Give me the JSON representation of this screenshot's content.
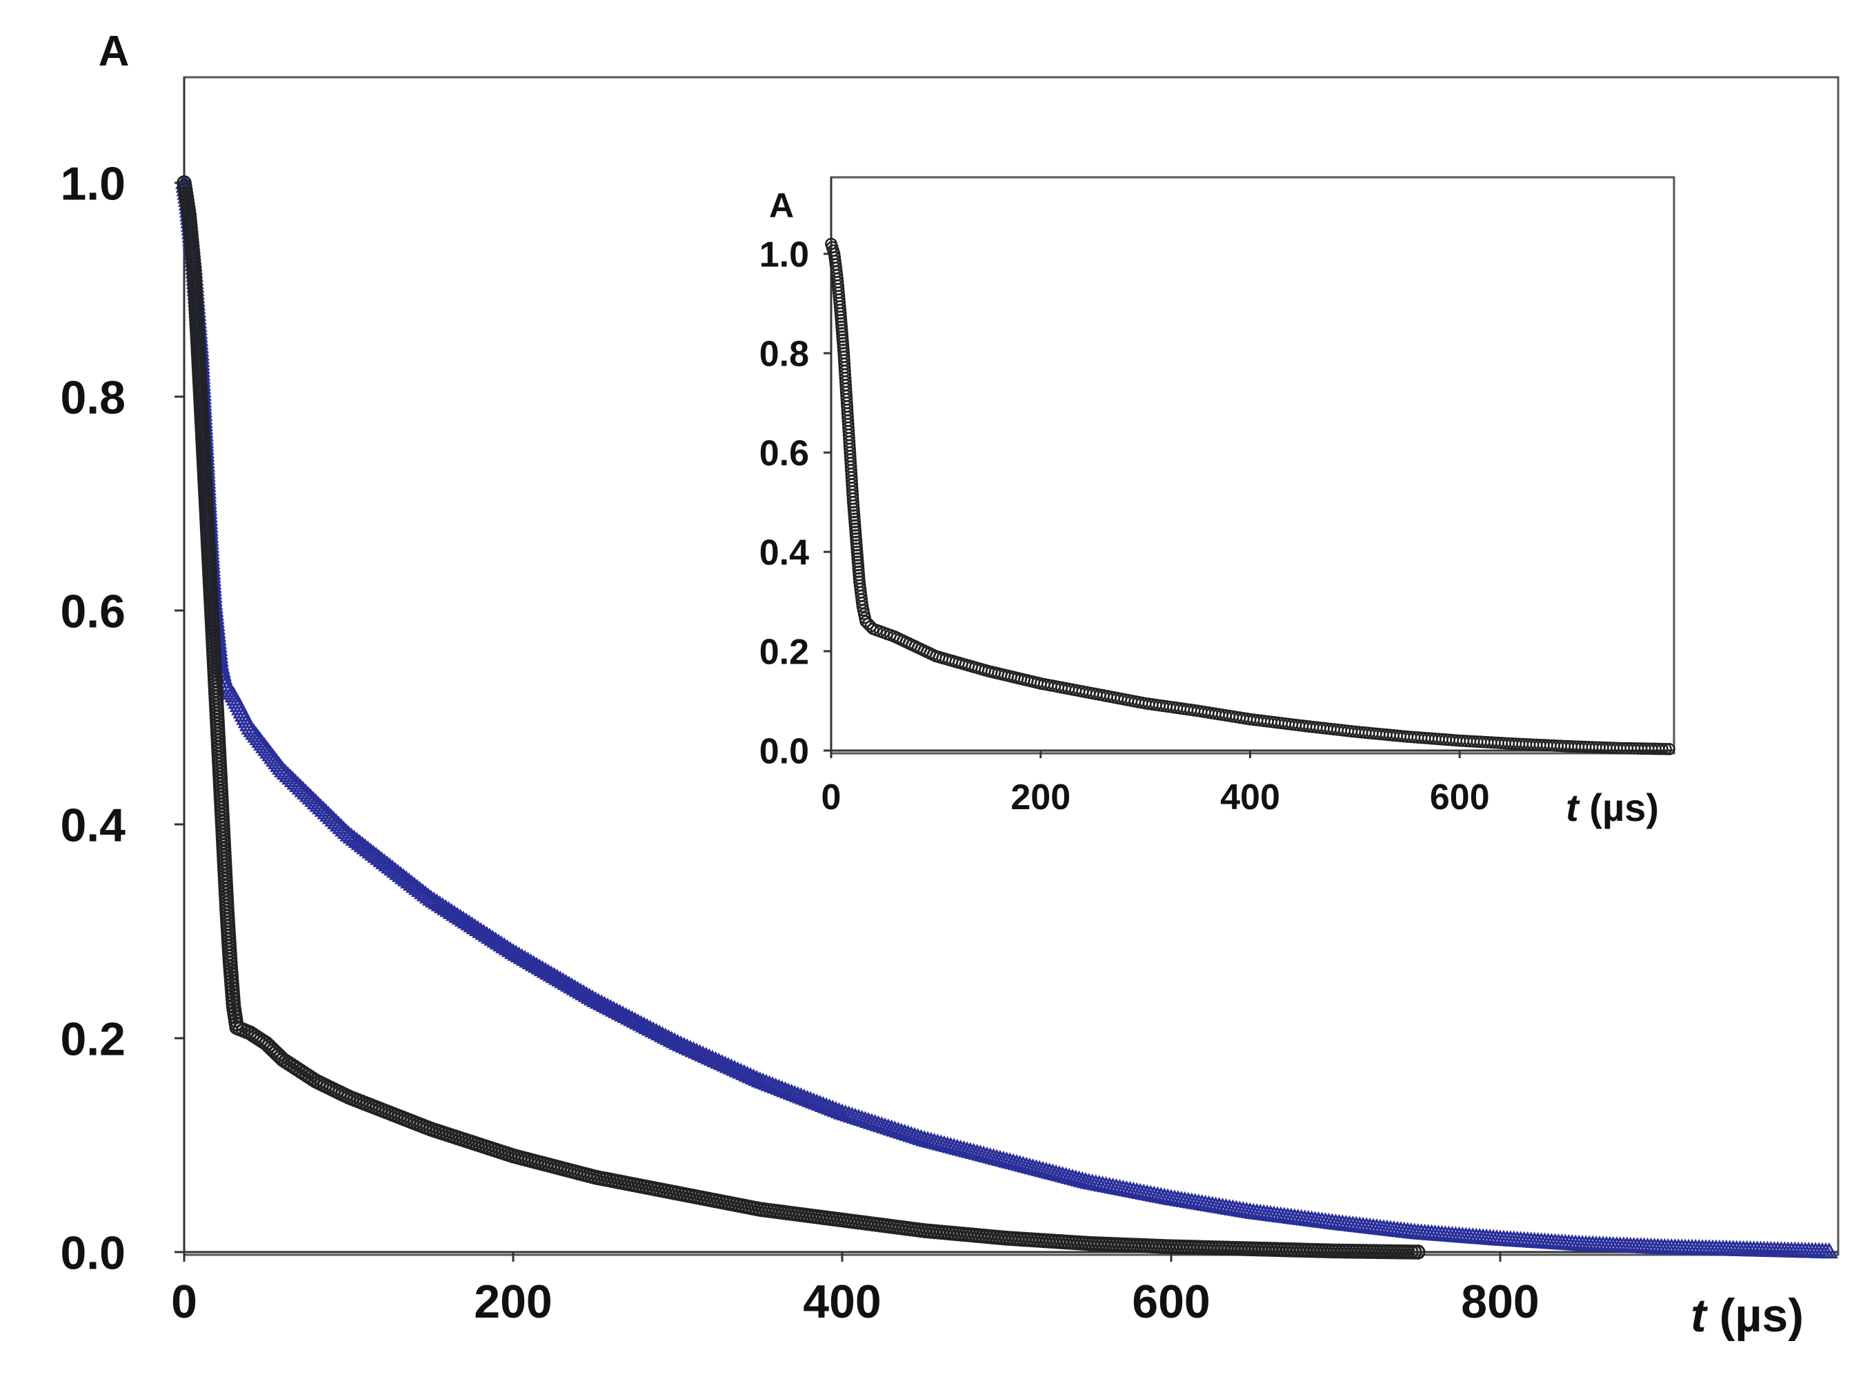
{
  "chart_data": [
    {
      "id": "main",
      "type": "scatter",
      "ylabel": "A",
      "xlabel_var": "t",
      "xlabel_unit": " (µs)",
      "xlim": [
        0,
        1000
      ],
      "ylim": [
        0,
        1.0
      ],
      "x_ticks": [
        0,
        200,
        400,
        600,
        800
      ],
      "y_ticks": [
        0.0,
        0.2,
        0.4,
        0.6,
        0.8,
        1.0
      ],
      "grid": false,
      "series": [
        {
          "marker": "triangle",
          "color": "#2a2f9a",
          "points": [
            [
              0,
              1.0
            ],
            [
              2,
              0.98
            ],
            [
              4,
              0.95
            ],
            [
              6,
              0.92
            ],
            [
              8,
              0.88
            ],
            [
              10,
              0.84
            ],
            [
              12,
              0.78
            ],
            [
              14,
              0.72
            ],
            [
              16,
              0.66
            ],
            [
              18,
              0.61
            ],
            [
              20,
              0.58
            ],
            [
              22,
              0.55
            ],
            [
              25,
              0.53
            ],
            [
              30,
              0.52
            ],
            [
              40,
              0.49
            ],
            [
              60,
              0.45
            ],
            [
              80,
              0.42
            ],
            [
              100,
              0.39
            ],
            [
              150,
              0.33
            ],
            [
              200,
              0.28
            ],
            [
              250,
              0.235
            ],
            [
              300,
              0.195
            ],
            [
              350,
              0.16
            ],
            [
              400,
              0.13
            ],
            [
              450,
              0.105
            ],
            [
              500,
              0.085
            ],
            [
              550,
              0.065
            ],
            [
              600,
              0.05
            ],
            [
              650,
              0.037
            ],
            [
              700,
              0.027
            ],
            [
              750,
              0.018
            ],
            [
              800,
              0.012
            ],
            [
              850,
              0.007
            ],
            [
              900,
              0.004
            ],
            [
              950,
              0.002
            ],
            [
              1000,
              0.0
            ]
          ]
        },
        {
          "marker": "circle",
          "color": "#222222",
          "points": [
            [
              0,
              1.0
            ],
            [
              3,
              0.97
            ],
            [
              6,
              0.92
            ],
            [
              8,
              0.86
            ],
            [
              10,
              0.8
            ],
            [
              12,
              0.74
            ],
            [
              14,
              0.68
            ],
            [
              16,
              0.62
            ],
            [
              18,
              0.56
            ],
            [
              20,
              0.5
            ],
            [
              22,
              0.44
            ],
            [
              24,
              0.38
            ],
            [
              26,
              0.32
            ],
            [
              28,
              0.27
            ],
            [
              30,
              0.23
            ],
            [
              32,
              0.21
            ],
            [
              40,
              0.205
            ],
            [
              50,
              0.195
            ],
            [
              60,
              0.18
            ],
            [
              80,
              0.16
            ],
            [
              100,
              0.145
            ],
            [
              150,
              0.115
            ],
            [
              200,
              0.09
            ],
            [
              250,
              0.07
            ],
            [
              300,
              0.055
            ],
            [
              350,
              0.04
            ],
            [
              400,
              0.03
            ],
            [
              450,
              0.02
            ],
            [
              500,
              0.013
            ],
            [
              550,
              0.008
            ],
            [
              600,
              0.005
            ],
            [
              650,
              0.003
            ],
            [
              700,
              0.001
            ],
            [
              750,
              0.0
            ]
          ]
        }
      ]
    },
    {
      "id": "inset",
      "type": "scatter",
      "ylabel": "A",
      "xlabel_var": "t",
      "xlabel_unit": " (µs)",
      "xlim": [
        0,
        800
      ],
      "ylim": [
        0,
        1.0
      ],
      "x_ticks": [
        0,
        200,
        400,
        600
      ],
      "y_ticks": [
        0.0,
        0.2,
        0.4,
        0.6,
        0.8,
        1.0
      ],
      "grid": false,
      "series": [
        {
          "marker": "circle",
          "color": "#222222",
          "points": [
            [
              0,
              1.02
            ],
            [
              3,
              1.0
            ],
            [
              6,
              0.95
            ],
            [
              9,
              0.88
            ],
            [
              12,
              0.8
            ],
            [
              15,
              0.7
            ],
            [
              18,
              0.6
            ],
            [
              21,
              0.5
            ],
            [
              24,
              0.42
            ],
            [
              27,
              0.34
            ],
            [
              30,
              0.29
            ],
            [
              33,
              0.26
            ],
            [
              40,
              0.245
            ],
            [
              60,
              0.23
            ],
            [
              80,
              0.21
            ],
            [
              100,
              0.19
            ],
            [
              150,
              0.16
            ],
            [
              200,
              0.135
            ],
            [
              250,
              0.115
            ],
            [
              300,
              0.095
            ],
            [
              350,
              0.08
            ],
            [
              400,
              0.063
            ],
            [
              450,
              0.05
            ],
            [
              500,
              0.038
            ],
            [
              550,
              0.028
            ],
            [
              600,
              0.02
            ],
            [
              650,
              0.014
            ],
            [
              700,
              0.009
            ],
            [
              750,
              0.005
            ],
            [
              800,
              0.003
            ]
          ]
        }
      ]
    }
  ]
}
